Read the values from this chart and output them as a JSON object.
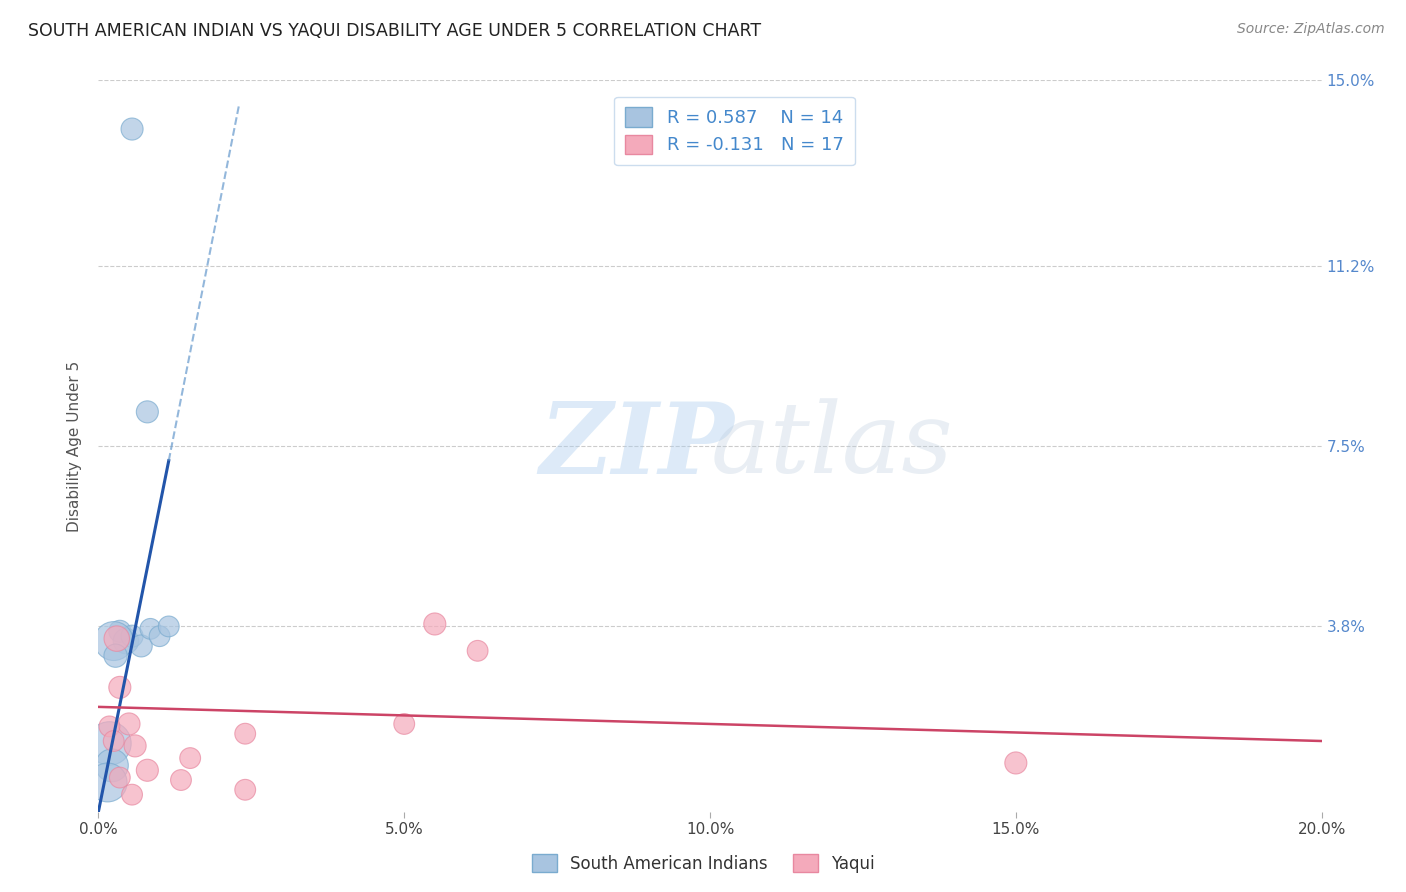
{
  "title": "SOUTH AMERICAN INDIAN VS YAQUI DISABILITY AGE UNDER 5 CORRELATION CHART",
  "source": "Source: ZipAtlas.com",
  "xlabel_ticks": [
    "0.0%",
    "5.0%",
    "10.0%",
    "15.0%",
    "20.0%"
  ],
  "xlabel_vals": [
    0.0,
    5.0,
    10.0,
    15.0,
    20.0
  ],
  "ylabel_ticks": [
    "3.8%",
    "7.5%",
    "11.2%",
    "15.0%"
  ],
  "ylabel_vals": [
    3.8,
    7.5,
    11.2,
    15.0
  ],
  "ylabel_label": "Disability Age Under 5",
  "xlim": [
    0,
    20.0
  ],
  "ylim": [
    0,
    15.0
  ],
  "legend_blue_label": "South American Indians",
  "legend_pink_label": "Yaqui",
  "legend_r_blue": "R = 0.587",
  "legend_n_blue": "N = 14",
  "legend_r_pink": "R = -0.131",
  "legend_n_pink": "N = 17",
  "blue_fill": "#A8C4E0",
  "blue_edge": "#7AABCF",
  "pink_fill": "#F4AABB",
  "pink_edge": "#E888A0",
  "blue_line_color": "#2255AA",
  "blue_dash_color": "#6699CC",
  "pink_line_color": "#CC4466",
  "blue_scatter_x": [
    0.55,
    0.8,
    0.35,
    0.45,
    0.55,
    0.7,
    0.85,
    1.0,
    1.15,
    0.25,
    0.28,
    0.18,
    0.22,
    0.15
  ],
  "blue_scatter_y": [
    14.0,
    8.2,
    3.7,
    3.5,
    3.6,
    3.4,
    3.75,
    3.6,
    3.8,
    3.5,
    3.2,
    1.4,
    0.95,
    0.6
  ],
  "blue_scatter_size": [
    90,
    90,
    90,
    120,
    90,
    90,
    80,
    80,
    80,
    280,
    100,
    350,
    200,
    280
  ],
  "pink_scatter_x": [
    0.3,
    0.35,
    0.5,
    0.6,
    0.8,
    1.35,
    2.4,
    5.5,
    6.2,
    0.18,
    0.25,
    0.35,
    1.5,
    2.4,
    5.0,
    15.0,
    0.55
  ],
  "pink_scatter_y": [
    3.55,
    2.55,
    1.8,
    1.35,
    0.85,
    0.65,
    0.45,
    3.85,
    3.3,
    1.75,
    1.45,
    0.7,
    1.1,
    1.6,
    1.8,
    1.0,
    0.35
  ],
  "pink_scatter_size": [
    120,
    90,
    90,
    90,
    90,
    80,
    80,
    90,
    80,
    80,
    80,
    80,
    80,
    80,
    80,
    90,
    80
  ],
  "blue_solid_x0": 0.0,
  "blue_solid_y0": 0.0,
  "blue_solid_x1": 1.15,
  "blue_solid_y1": 7.2,
  "blue_dash_x0": 1.15,
  "blue_dash_y0": 7.2,
  "blue_dash_x1": 2.3,
  "blue_dash_y1": 14.5,
  "pink_solid_x0": 0.0,
  "pink_solid_y0": 2.15,
  "pink_solid_x1": 20.0,
  "pink_solid_y1": 1.45,
  "background_color": "#FFFFFF",
  "grid_color": "#CCCCCC",
  "watermark_zip": "ZIP",
  "watermark_atlas": "atlas"
}
